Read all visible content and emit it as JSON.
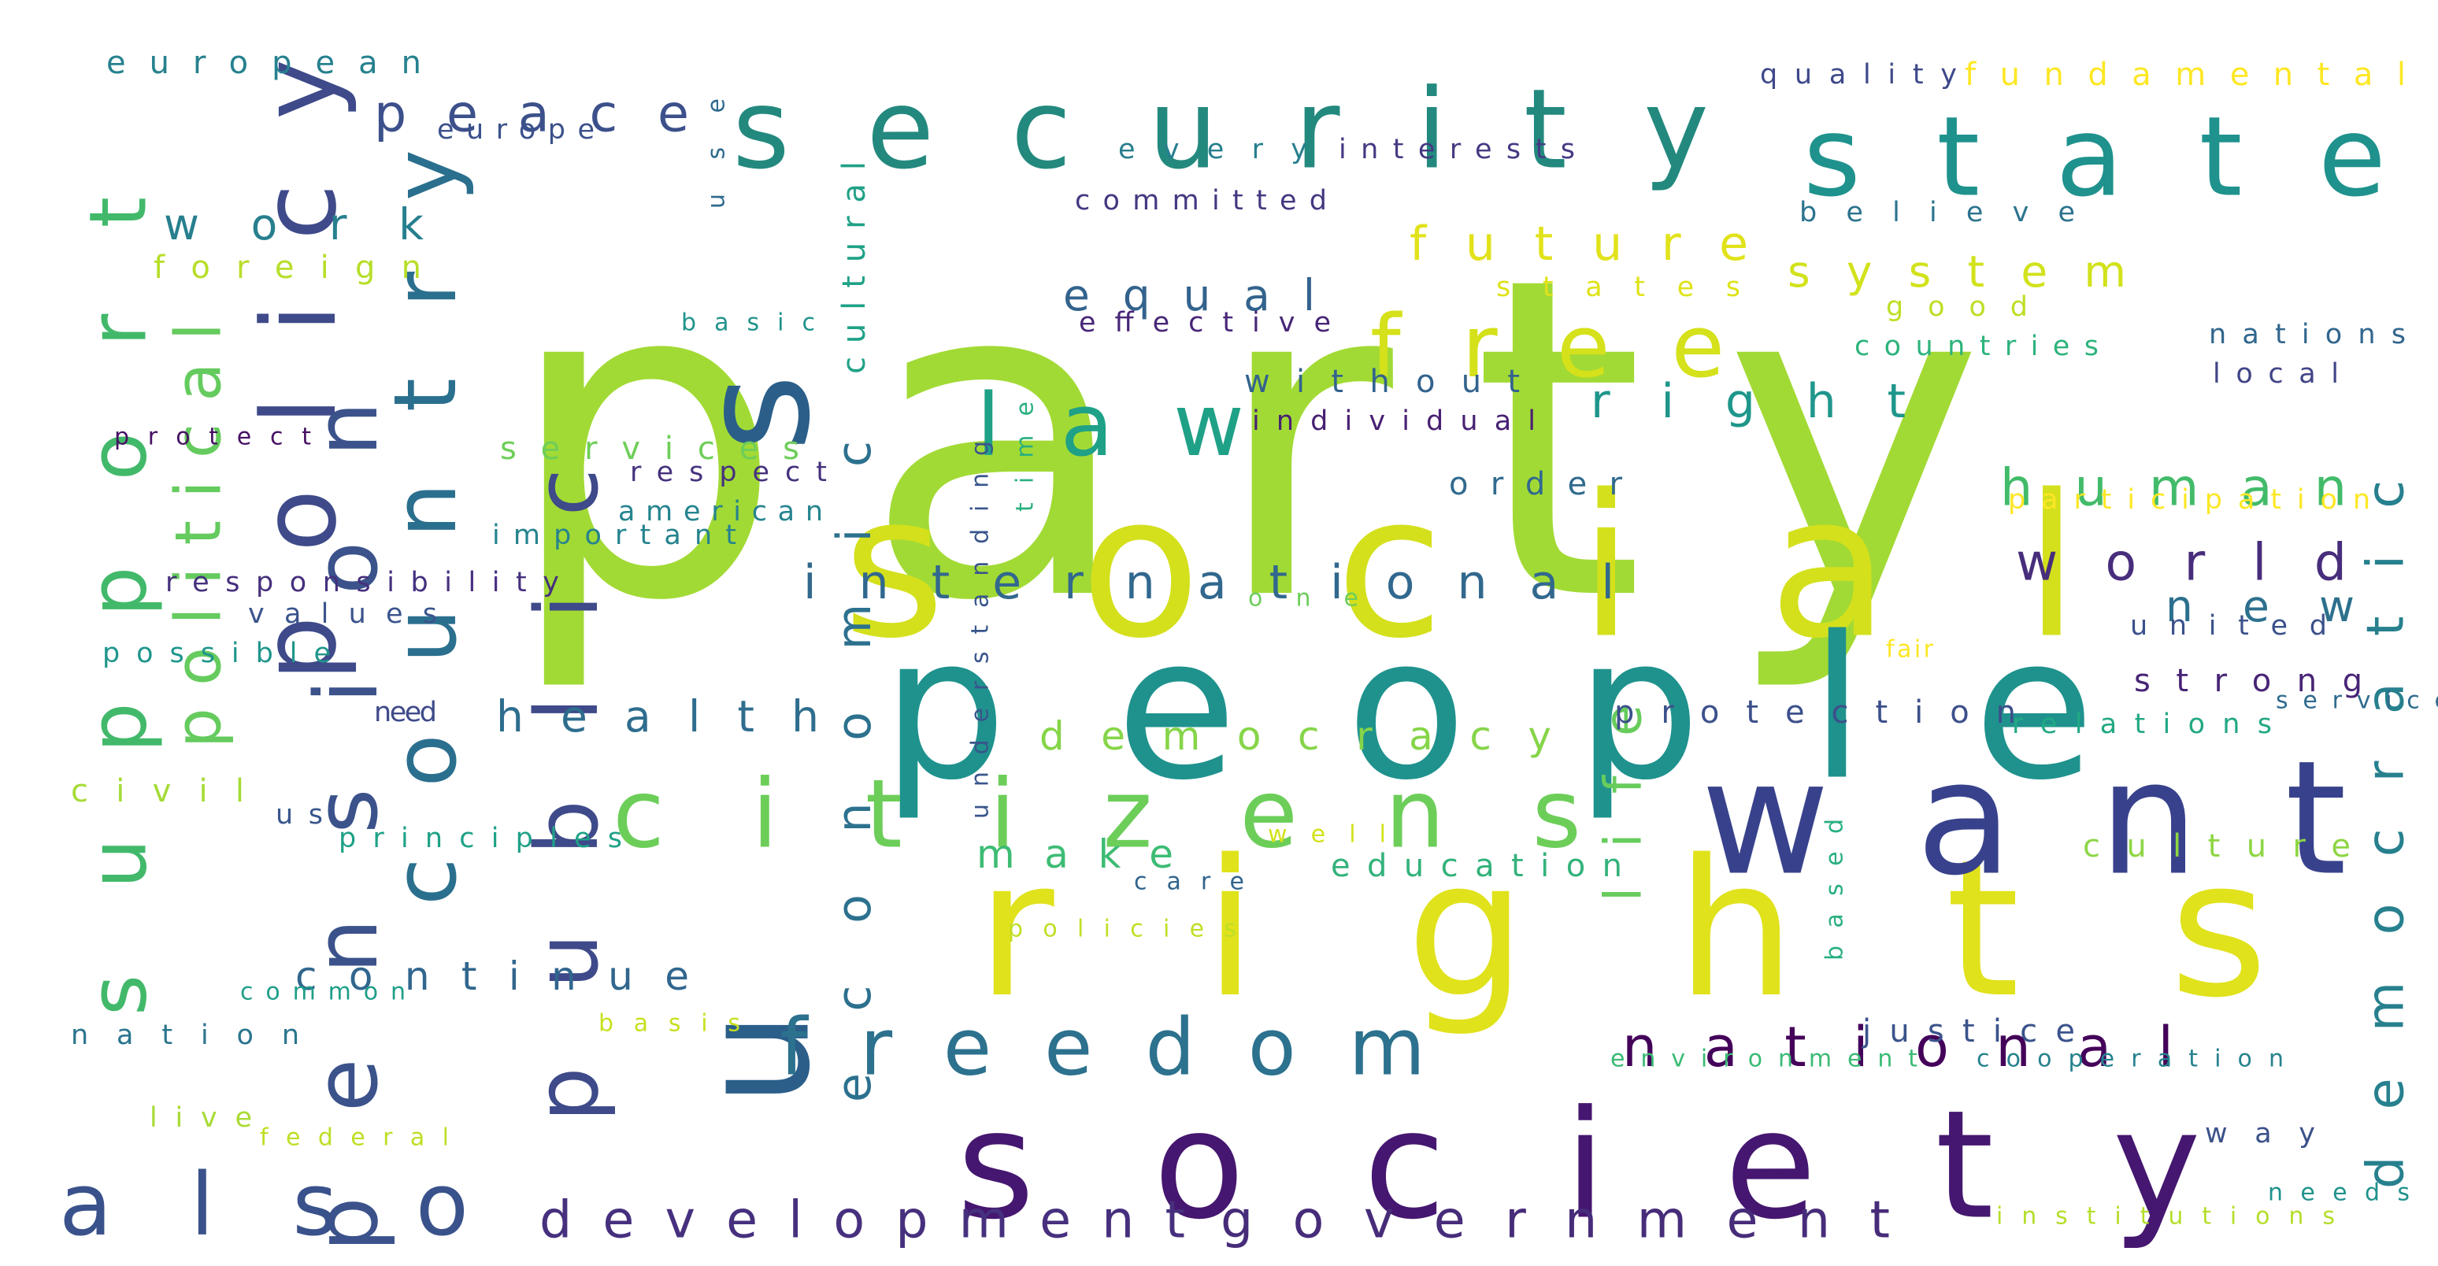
{
  "words": [
    {
      "text": "party",
      "color": "#a2da35"
    },
    {
      "text": "social",
      "color": "#d4e01c"
    },
    {
      "text": "people",
      "color": "#1f928d"
    },
    {
      "text": "rights",
      "color": "#e0e21c"
    },
    {
      "text": "society",
      "color": "#451770"
    },
    {
      "text": "us",
      "color": "#2b5f8a"
    },
    {
      "text": "want",
      "color": "#38428c"
    },
    {
      "text": "security",
      "color": "#23897e"
    },
    {
      "text": "state",
      "color": "#1f928d"
    },
    {
      "text": "policy",
      "color": "#3e4a89"
    },
    {
      "text": "country",
      "color": "#2b6f8e"
    },
    {
      "text": "public",
      "color": "#3e4a89"
    },
    {
      "text": "support",
      "color": "#42b96a"
    },
    {
      "text": "citizens",
      "color": "#6cce59"
    },
    {
      "text": "free",
      "color": "#d5e11a"
    },
    {
      "text": "law",
      "color": "#1fa187"
    },
    {
      "text": "freedom",
      "color": "#2c718e"
    },
    {
      "text": "pension",
      "color": "#3b528b"
    },
    {
      "text": "also",
      "color": "#3a528b"
    },
    {
      "text": "political",
      "color": "#65cb5e"
    },
    {
      "text": "economic",
      "color": "#2c718e"
    },
    {
      "text": "development",
      "color": "#46307e"
    },
    {
      "text": "government",
      "color": "#472c7a"
    },
    {
      "text": "national",
      "color": "#44015a"
    },
    {
      "text": "international",
      "color": "#31688e"
    },
    {
      "text": "life",
      "color": "#67cc5c"
    },
    {
      "text": "democratic",
      "color": "#27808e"
    },
    {
      "text": "human",
      "color": "#42bb6a"
    },
    {
      "text": "world",
      "color": "#472d7b"
    },
    {
      "text": "peace",
      "color": "#3c508b"
    },
    {
      "text": "health",
      "color": "#2e6d8e"
    },
    {
      "text": "right",
      "color": "#1f968b"
    },
    {
      "text": "future",
      "color": "#e1e21a"
    },
    {
      "text": "system",
      "color": "#d2e21b"
    },
    {
      "text": "work",
      "color": "#277f8e"
    },
    {
      "text": "equal",
      "color": "#33638d"
    },
    {
      "text": "democracy",
      "color": "#86d549"
    },
    {
      "text": "new",
      "color": "#2d708e"
    },
    {
      "text": "continue",
      "color": "#31668e"
    },
    {
      "text": "make",
      "color": "#3dbc74"
    },
    {
      "text": "education",
      "color": "#33b27b"
    },
    {
      "text": "protection",
      "color": "#3c508b"
    },
    {
      "text": "culture",
      "color": "#8ed645"
    },
    {
      "text": "strong",
      "color": "#482576"
    },
    {
      "text": "justice",
      "color": "#3a538b"
    },
    {
      "text": "cultural",
      "color": "#1fa187"
    },
    {
      "text": "without",
      "color": "#33638d"
    },
    {
      "text": "human rights",
      "color": "#42bb6a"
    },
    {
      "text": "european",
      "color": "#26818e"
    },
    {
      "text": "fundamental",
      "color": "#fde725"
    },
    {
      "text": "quality",
      "color": "#3e4989"
    },
    {
      "text": "europe",
      "color": "#3b518b"
    },
    {
      "text": "use",
      "color": "#2f6b8e"
    },
    {
      "text": "every",
      "color": "#277f8e"
    },
    {
      "text": "interests",
      "color": "#443a83"
    },
    {
      "text": "committed",
      "color": "#453781"
    },
    {
      "text": "believe",
      "color": "#2b738e"
    },
    {
      "text": "foreign",
      "color": "#b7de2a"
    },
    {
      "text": "states",
      "color": "#dfe318"
    },
    {
      "text": "good",
      "color": "#bddf26"
    },
    {
      "text": "effective",
      "color": "#482677"
    },
    {
      "text": "basic",
      "color": "#20938c"
    },
    {
      "text": "countries",
      "color": "#2eb37c"
    },
    {
      "text": "nations",
      "color": "#31668e"
    },
    {
      "text": "local",
      "color": "#414487"
    },
    {
      "text": "individual",
      "color": "#482173"
    },
    {
      "text": "protect",
      "color": "#471164"
    },
    {
      "text": "services",
      "color": "#6ece58"
    },
    {
      "text": "respect",
      "color": "#46327e"
    },
    {
      "text": "time",
      "color": "#2ab07f"
    },
    {
      "text": "understanding",
      "color": "#39558c"
    },
    {
      "text": "order",
      "color": "#306a8e"
    },
    {
      "text": "participation",
      "color": "#fde725"
    },
    {
      "text": "american",
      "color": "#25848e"
    },
    {
      "text": "important",
      "color": "#25838e"
    },
    {
      "text": "responsibility",
      "color": "#46307e"
    },
    {
      "text": "one",
      "color": "#6ccd5a"
    },
    {
      "text": "values",
      "color": "#3a548c"
    },
    {
      "text": "possible",
      "color": "#1f968b"
    },
    {
      "text": "united",
      "color": "#3b518b"
    },
    {
      "text": "fair",
      "color": "#fde725"
    },
    {
      "text": "service",
      "color": "#2f6b8e"
    },
    {
      "text": "relations",
      "color": "#22a884"
    },
    {
      "text": "need",
      "color": "#3e4a89"
    },
    {
      "text": "civil",
      "color": "#a5db36"
    },
    {
      "text": "us",
      "color": "#39568c"
    },
    {
      "text": "principles",
      "color": "#1fa187"
    },
    {
      "text": "well",
      "color": "#d2e21b"
    },
    {
      "text": "care",
      "color": "#32648e"
    },
    {
      "text": "based",
      "color": "#29af7f"
    },
    {
      "text": "policies",
      "color": "#c0df25"
    },
    {
      "text": "common",
      "color": "#1f9e89"
    },
    {
      "text": "nation",
      "color": "#2b758e"
    },
    {
      "text": "basis",
      "color": "#c8e020"
    },
    {
      "text": "environment",
      "color": "#3bbb75"
    },
    {
      "text": "cooperation",
      "color": "#26828e"
    },
    {
      "text": "live",
      "color": "#a8db34"
    },
    {
      "text": "federal",
      "color": "#bddf26"
    },
    {
      "text": "way",
      "color": "#3b518b"
    },
    {
      "text": "needs",
      "color": "#20928c"
    },
    {
      "text": "institutions",
      "color": "#b5de2b"
    }
  ]
}
